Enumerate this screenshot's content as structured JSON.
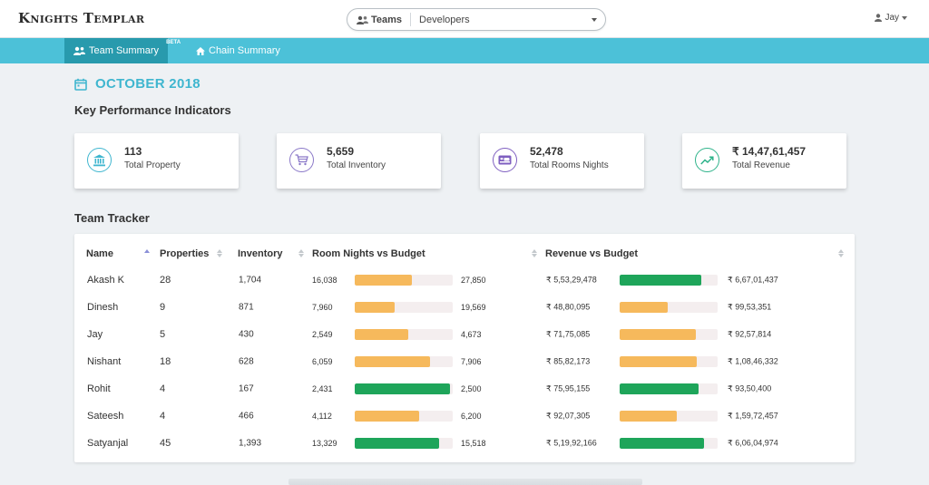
{
  "app": {
    "title": "Knights Templar"
  },
  "header": {
    "teams_label": "Teams",
    "teams_value": "Developers",
    "user": "Jay"
  },
  "nav": {
    "tabs": [
      {
        "label": "Team Summary",
        "badge": "BETA",
        "active": true
      },
      {
        "label": "Chain Summary",
        "active": false
      }
    ]
  },
  "period": "OCTOBER 2018",
  "kpi": {
    "title": "Key Performance Indicators",
    "cards": [
      {
        "icon": "bank-icon",
        "value": "113",
        "label": "Total Property",
        "color": "#3fb6cf"
      },
      {
        "icon": "cart-icon",
        "value": "5,659",
        "label": "Total Inventory",
        "color": "#8a78c8"
      },
      {
        "icon": "bed-icon",
        "value": "52,478",
        "label": "Total Rooms Nights",
        "color": "#7f5fc0"
      },
      {
        "icon": "trend-up-icon",
        "value": "₹ 14,47,61,457",
        "label": "Total Revenue",
        "color": "#2eb38a"
      }
    ]
  },
  "tracker": {
    "title": "Team Tracker",
    "columns": [
      "Name",
      "Properties",
      "Inventory",
      "Room Nights vs Budget",
      "Revenue vs Budget"
    ],
    "sort": {
      "column": "Name",
      "direction": "asc"
    },
    "colors": {
      "under_budget": "#f6b95c",
      "near_budget": "#1ea55a",
      "track": "#f4eeef"
    },
    "rows": [
      {
        "name": "Akash K",
        "properties": "28",
        "inventory": "1,704",
        "room_nights": "16,038",
        "room_nights_budget": "27,850",
        "rn_progress": 0.58,
        "rn_status": "under",
        "revenue": "₹ 5,53,29,478",
        "revenue_budget": "₹ 6,67,01,437",
        "rev_progress": 0.83,
        "rev_status": "near"
      },
      {
        "name": "Dinesh",
        "properties": "9",
        "inventory": "871",
        "room_nights": "7,960",
        "room_nights_budget": "19,569",
        "rn_progress": 0.41,
        "rn_status": "under",
        "revenue": "₹ 48,80,095",
        "revenue_budget": "₹ 99,53,351",
        "rev_progress": 0.49,
        "rev_status": "under"
      },
      {
        "name": "Jay",
        "properties": "5",
        "inventory": "430",
        "room_nights": "2,549",
        "room_nights_budget": "4,673",
        "rn_progress": 0.55,
        "rn_status": "under",
        "revenue": "₹ 71,75,085",
        "revenue_budget": "₹ 92,57,814",
        "rev_progress": 0.78,
        "rev_status": "under"
      },
      {
        "name": "Nishant",
        "properties": "18",
        "inventory": "628",
        "room_nights": "6,059",
        "room_nights_budget": "7,906",
        "rn_progress": 0.77,
        "rn_status": "under",
        "revenue": "₹ 85,82,173",
        "revenue_budget": "₹ 1,08,46,332",
        "rev_progress": 0.79,
        "rev_status": "under"
      },
      {
        "name": "Rohit",
        "properties": "4",
        "inventory": "167",
        "room_nights": "2,431",
        "room_nights_budget": "2,500",
        "rn_progress": 0.97,
        "rn_status": "near",
        "revenue": "₹ 75,95,155",
        "revenue_budget": "₹ 93,50,400",
        "rev_progress": 0.81,
        "rev_status": "near"
      },
      {
        "name": "Sateesh",
        "properties": "4",
        "inventory": "466",
        "room_nights": "4,112",
        "room_nights_budget": "6,200",
        "rn_progress": 0.66,
        "rn_status": "under",
        "revenue": "₹ 92,07,305",
        "revenue_budget": "₹ 1,59,72,457",
        "rev_progress": 0.58,
        "rev_status": "under"
      },
      {
        "name": "Satyanjal",
        "properties": "45",
        "inventory": "1,393",
        "room_nights": "13,329",
        "room_nights_budget": "15,518",
        "rn_progress": 0.86,
        "rn_status": "near",
        "revenue": "₹ 5,19,92,166",
        "revenue_budget": "₹ 6,06,04,974",
        "rev_progress": 0.86,
        "rev_status": "near"
      }
    ]
  }
}
